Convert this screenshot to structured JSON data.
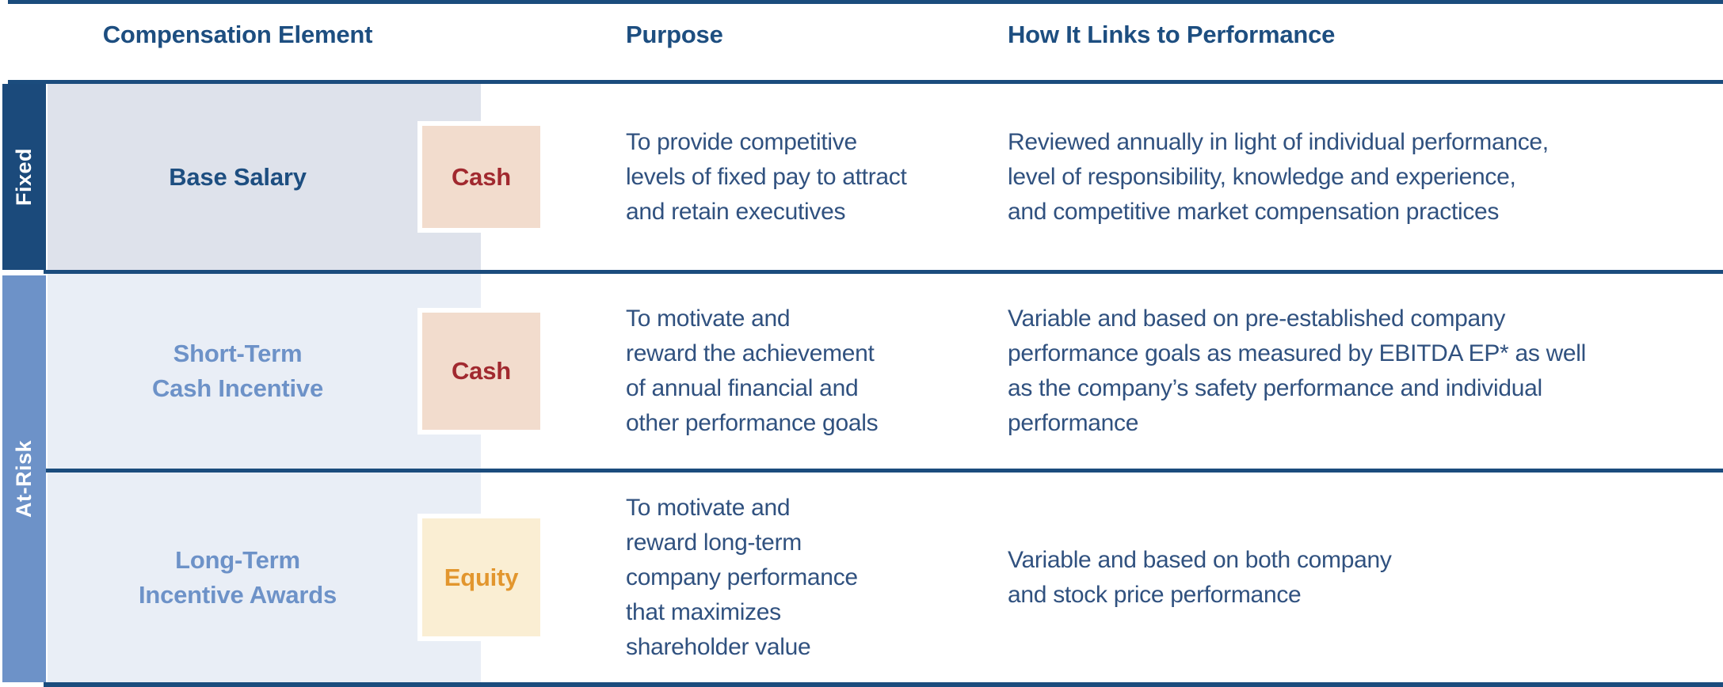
{
  "table": {
    "headers": {
      "element": "Compensation Element",
      "purpose": "Purpose",
      "links": "How It Links to Performance"
    },
    "side_groups": [
      {
        "label": "Fixed"
      },
      {
        "label": "At-Risk"
      }
    ],
    "rows": [
      {
        "element": "Base Salary",
        "type_badge": "Cash",
        "purpose": "To provide competitive\nlevels of fixed pay to attract\nand retain executives",
        "links": "Reviewed annually in light of individual performance,\nlevel of responsibility, knowledge and experience,\nand competitive market compensation practices"
      },
      {
        "element": "Short-Term\nCash Incentive",
        "type_badge": "Cash",
        "purpose": "To motivate and\nreward the achievement\nof annual financial and\nother performance goals",
        "links": "Variable and based on pre-established company\nperformance goals as measured by EBITDA EP* as well\nas the company’s safety performance and individual\nperformance"
      },
      {
        "element": "Long-Term\nIncentive Awards",
        "type_badge": "Equity",
        "purpose": "To motivate and\nreward long-term\ncompany performance\nthat maximizes\nshareholder value",
        "links": "Variable and based on both company\nand stock price performance"
      }
    ],
    "colors": {
      "rule_navy": "#1b4c7d",
      "header_text_navy": "#1d4e80",
      "body_text_navy": "#30517f",
      "fixed_bar_navy": "#1b4a7b",
      "atrisk_bar_blue": "#6d92c8",
      "element_label_blue": "#6d92c8",
      "row1_column_bg": "#dee2eb",
      "row23_column_bg": "#e9eef6",
      "cash_badge_bg": "#f2dccd",
      "cash_badge_text": "#a1292f",
      "equity_badge_bg": "#faeed3",
      "equity_badge_text": "#e2962e"
    }
  }
}
